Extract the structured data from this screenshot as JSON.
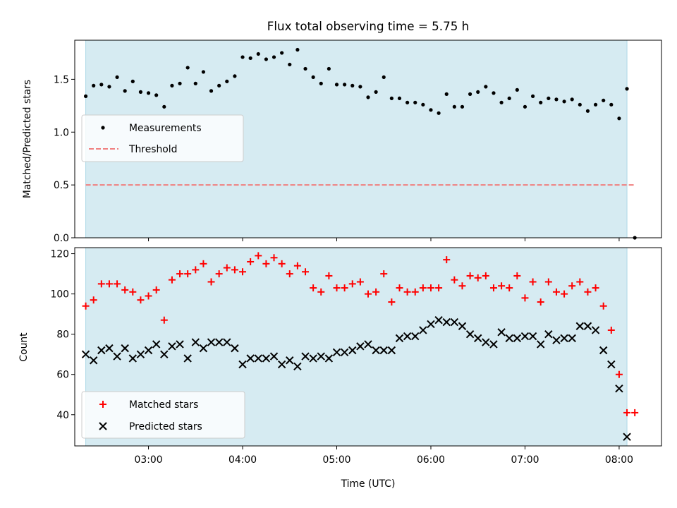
{
  "title": "Flux total observing time = 5.75 h",
  "colors": {
    "shade": "#add8e6",
    "threshold": "#f08080",
    "matched": "#ff0000",
    "predicted": "#000000",
    "measurement": "#000000"
  },
  "chart_data": [
    {
      "type": "scatter",
      "ylabel": "Matched/Predicted stars",
      "xlim": [
        "02:13",
        "08:27"
      ],
      "ylim": [
        0,
        1.87
      ],
      "yticks": [
        "0.0",
        "0.5",
        "1.0",
        "1.5"
      ],
      "grid": false,
      "legend_position": "center-left",
      "shaded_interval": [
        "02:20",
        "08:05"
      ],
      "threshold": {
        "name": "Threshold",
        "value": 0.5,
        "x_range": [
          "02:20",
          "08:10"
        ]
      },
      "series": [
        {
          "name": "Measurements",
          "x": [
            "02:20",
            "02:25",
            "02:30",
            "02:35",
            "02:40",
            "02:45",
            "02:50",
            "02:55",
            "03:00",
            "03:05",
            "03:10",
            "03:15",
            "03:20",
            "03:25",
            "03:30",
            "03:35",
            "03:40",
            "03:45",
            "03:50",
            "03:55",
            "04:00",
            "04:05",
            "04:10",
            "04:15",
            "04:20",
            "04:25",
            "04:30",
            "04:35",
            "04:40",
            "04:45",
            "04:50",
            "04:55",
            "05:00",
            "05:05",
            "05:10",
            "05:15",
            "05:20",
            "05:25",
            "05:30",
            "05:35",
            "05:40",
            "05:45",
            "05:50",
            "05:55",
            "06:00",
            "06:05",
            "06:10",
            "06:15",
            "06:20",
            "06:25",
            "06:30",
            "06:35",
            "06:40",
            "06:45",
            "06:50",
            "06:55",
            "07:00",
            "07:05",
            "07:10",
            "07:15",
            "07:20",
            "07:25",
            "07:30",
            "07:35",
            "07:40",
            "07:45",
            "07:50",
            "07:55",
            "08:00",
            "08:05",
            "08:10"
          ],
          "y": [
            1.34,
            1.44,
            1.45,
            1.43,
            1.52,
            1.39,
            1.48,
            1.38,
            1.37,
            1.35,
            1.24,
            1.44,
            1.46,
            1.61,
            1.46,
            1.57,
            1.39,
            1.44,
            1.48,
            1.53,
            1.71,
            1.7,
            1.74,
            1.69,
            1.71,
            1.75,
            1.64,
            1.78,
            1.6,
            1.52,
            1.46,
            1.6,
            1.45,
            1.45,
            1.44,
            1.43,
            1.33,
            1.38,
            1.52,
            1.32,
            1.32,
            1.28,
            1.28,
            1.26,
            1.21,
            1.18,
            1.36,
            1.24,
            1.24,
            1.36,
            1.38,
            1.43,
            1.37,
            1.28,
            1.32,
            1.4,
            1.24,
            1.34,
            1.28,
            1.32,
            1.31,
            1.29,
            1.31,
            1.26,
            1.2,
            1.26,
            1.3,
            1.26,
            1.13,
            1.41,
            0.0
          ]
        }
      ]
    },
    {
      "type": "scatter",
      "xlabel": "Time (UTC)",
      "ylabel": "Count",
      "xlim": [
        "02:13",
        "08:27"
      ],
      "ylim": [
        24.5,
        123
      ],
      "xticks": [
        "03:00",
        "04:00",
        "05:00",
        "06:00",
        "07:00",
        "08:00"
      ],
      "yticks": [
        "40",
        "60",
        "80",
        "100",
        "120"
      ],
      "grid": false,
      "legend_position": "lower-left",
      "shaded_interval": [
        "02:20",
        "08:05"
      ],
      "series": [
        {
          "name": "Matched stars",
          "marker": "plus",
          "x": [
            "02:20",
            "02:25",
            "02:30",
            "02:35",
            "02:40",
            "02:45",
            "02:50",
            "02:55",
            "03:00",
            "03:05",
            "03:10",
            "03:15",
            "03:20",
            "03:25",
            "03:30",
            "03:35",
            "03:40",
            "03:45",
            "03:50",
            "03:55",
            "04:00",
            "04:05",
            "04:10",
            "04:15",
            "04:20",
            "04:25",
            "04:30",
            "04:35",
            "04:40",
            "04:45",
            "04:50",
            "04:55",
            "05:00",
            "05:05",
            "05:10",
            "05:15",
            "05:20",
            "05:25",
            "05:30",
            "05:35",
            "05:40",
            "05:45",
            "05:50",
            "05:55",
            "06:00",
            "06:05",
            "06:10",
            "06:15",
            "06:20",
            "06:25",
            "06:30",
            "06:35",
            "06:40",
            "06:45",
            "06:50",
            "06:55",
            "07:00",
            "07:05",
            "07:10",
            "07:15",
            "07:20",
            "07:25",
            "07:30",
            "07:35",
            "07:40",
            "07:45",
            "07:50",
            "07:55",
            "08:00",
            "08:05",
            "08:10"
          ],
          "y": [
            94,
            97,
            105,
            105,
            105,
            102,
            101,
            97,
            99,
            102,
            87,
            107,
            110,
            110,
            112,
            115,
            106,
            110,
            113,
            112,
            111,
            116,
            119,
            115,
            118,
            115,
            110,
            114,
            111,
            103,
            101,
            109,
            103,
            103,
            105,
            106,
            100,
            101,
            110,
            96,
            103,
            101,
            101,
            103,
            103,
            103,
            117,
            107,
            104,
            109,
            108,
            109,
            103,
            104,
            103,
            109,
            98,
            106,
            96,
            106,
            101,
            100,
            104,
            106,
            101,
            103,
            94,
            82,
            60,
            41,
            41
          ]
        },
        {
          "name": "Predicted stars",
          "marker": "x",
          "x": [
            "02:20",
            "02:25",
            "02:30",
            "02:35",
            "02:40",
            "02:45",
            "02:50",
            "02:55",
            "03:00",
            "03:05",
            "03:10",
            "03:15",
            "03:20",
            "03:25",
            "03:30",
            "03:35",
            "03:40",
            "03:45",
            "03:50",
            "03:55",
            "04:00",
            "04:05",
            "04:10",
            "04:15",
            "04:20",
            "04:25",
            "04:30",
            "04:35",
            "04:40",
            "04:45",
            "04:50",
            "04:55",
            "05:00",
            "05:05",
            "05:10",
            "05:15",
            "05:20",
            "05:25",
            "05:30",
            "05:35",
            "05:40",
            "05:45",
            "05:50",
            "05:55",
            "06:00",
            "06:05",
            "06:10",
            "06:15",
            "06:20",
            "06:25",
            "06:30",
            "06:35",
            "06:40",
            "06:45",
            "06:50",
            "06:55",
            "07:00",
            "07:05",
            "07:10",
            "07:15",
            "07:20",
            "07:25",
            "07:30",
            "07:35",
            "07:40",
            "07:45",
            "07:50",
            "07:55",
            "08:00",
            "08:05"
          ],
          "y": [
            70,
            67,
            72,
            73,
            69,
            73,
            68,
            70,
            72,
            75,
            70,
            74,
            75,
            68,
            76,
            73,
            76,
            76,
            76,
            73,
            65,
            68,
            68,
            68,
            69,
            65,
            67,
            64,
            69,
            68,
            69,
            68,
            71,
            71,
            72,
            74,
            75,
            72,
            72,
            72,
            78,
            79,
            79,
            82,
            85,
            87,
            86,
            86,
            84,
            80,
            78,
            76,
            75,
            81,
            78,
            78,
            79,
            79,
            75,
            80,
            77,
            78,
            78,
            84,
            84,
            82,
            72,
            65,
            53,
            29
          ]
        }
      ]
    }
  ]
}
